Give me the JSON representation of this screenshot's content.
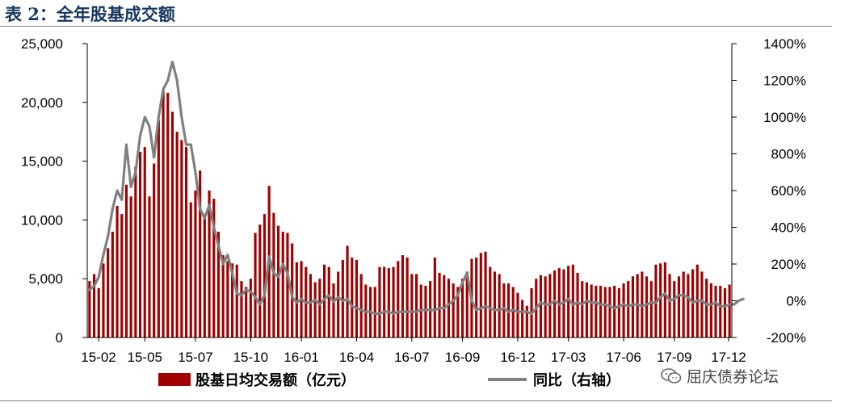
{
  "header": {
    "title": "表 2：全年股基成交额"
  },
  "watermark": {
    "text": "屈庆债券论坛",
    "icon": "wechat-icon"
  },
  "colors": {
    "bars": "#a00000",
    "line": "#808080",
    "axis": "#000000"
  },
  "chart_data": {
    "type": "bar+line",
    "title": "",
    "xlabel": "",
    "ylabel_left": "",
    "ylabel_right": "",
    "x_tick_labels": [
      "15-02",
      "15-05",
      "15-07",
      "15-10",
      "16-01",
      "16-04",
      "16-07",
      "16-09",
      "16-12",
      "17-03",
      "17-06",
      "17-09",
      "17-12"
    ],
    "y_left": {
      "min": 0,
      "max": 25000,
      "ticks": [
        "0",
        "5,000",
        "10,000",
        "15,000",
        "20,000",
        "25,000"
      ]
    },
    "y_right": {
      "min": -200,
      "max": 1400,
      "ticks": [
        "-200%",
        "0%",
        "200%",
        "400%",
        "600%",
        "800%",
        "1000%",
        "1200%",
        "1400%"
      ]
    },
    "grid": false,
    "legend_position": "bottom",
    "series": [
      {
        "name": "股基日均交易额（亿元）",
        "kind": "bar",
        "axis": "left",
        "values": [
          4800,
          5400,
          4200,
          6300,
          7600,
          9000,
          11200,
          10500,
          13000,
          12000,
          14500,
          15800,
          16200,
          12000,
          14800,
          18500,
          21000,
          20800,
          19200,
          17500,
          16800,
          16200,
          11500,
          12500,
          14200,
          10500,
          12500,
          11800,
          9000,
          7000,
          6500,
          6300,
          6200,
          4800,
          4300,
          5000,
          8900,
          9600,
          10500,
          12900,
          10600,
          9500,
          9000,
          8900,
          8000,
          6400,
          6500,
          6000,
          5400,
          4700,
          5000,
          6200,
          6000,
          4600,
          5600,
          6600,
          7800,
          6800,
          6600,
          5400,
          4500,
          4300,
          4300,
          6000,
          6000,
          5900,
          6000,
          6500,
          7000,
          6800,
          5400,
          5400,
          4500,
          4400,
          4800,
          6800,
          5500,
          5300,
          5000,
          4600,
          4300,
          5000,
          5600,
          6700,
          6800,
          7200,
          7300,
          6000,
          5600,
          5400,
          4600,
          4600,
          4300,
          3800,
          3200,
          2700,
          4200,
          5000,
          5300,
          5200,
          5400,
          5700,
          5900,
          5800,
          6100,
          6200,
          5500,
          4800,
          4700,
          4500,
          4400,
          4400,
          4300,
          4300,
          4400,
          4200,
          4600,
          4800,
          5200,
          5400,
          5600,
          5200,
          4800,
          6200,
          6300,
          6400,
          5400,
          4800,
          5200,
          5600,
          5400,
          5800,
          6200,
          5600,
          5000,
          4600,
          4400,
          4400,
          4200,
          4500
        ]
      },
      {
        "name": "同比（右轴）",
        "kind": "line",
        "axis": "right",
        "values": [
          60,
          80,
          130,
          250,
          350,
          500,
          600,
          550,
          850,
          620,
          700,
          900,
          1000,
          950,
          780,
          1000,
          1150,
          1200,
          1300,
          1200,
          1000,
          850,
          850,
          700,
          500,
          450,
          520,
          400,
          300,
          200,
          250,
          150,
          40,
          30,
          60,
          50,
          20,
          -20,
          30,
          240,
          150,
          130,
          200,
          150,
          20,
          -10,
          10,
          -10,
          -10,
          5,
          -20,
          10,
          30,
          -5,
          20,
          0,
          10,
          -30,
          -40,
          -50,
          -60,
          -60,
          -70,
          -70,
          -60,
          -60,
          -70,
          -60,
          -60,
          -60,
          -60,
          -60,
          -50,
          -50,
          -50,
          -50,
          -40,
          -40,
          -20,
          0,
          30,
          100,
          150,
          0,
          -50,
          -40,
          -30,
          -40,
          -50,
          -50,
          -40,
          -60,
          -50,
          -60,
          -60,
          -60,
          -70,
          -40,
          -10,
          -20,
          -20,
          0,
          -20,
          -10,
          10,
          -20,
          -10,
          -20,
          0,
          -10,
          -10,
          -20,
          -20,
          -30,
          -40,
          -30,
          -20,
          -30,
          -20,
          -20,
          -30,
          -20,
          -10,
          -10,
          20,
          40,
          0,
          10,
          30,
          30,
          20,
          -10,
          0,
          0,
          -20,
          -20,
          -10,
          -30,
          -30,
          -20,
          -20,
          0,
          10
        ]
      }
    ]
  }
}
